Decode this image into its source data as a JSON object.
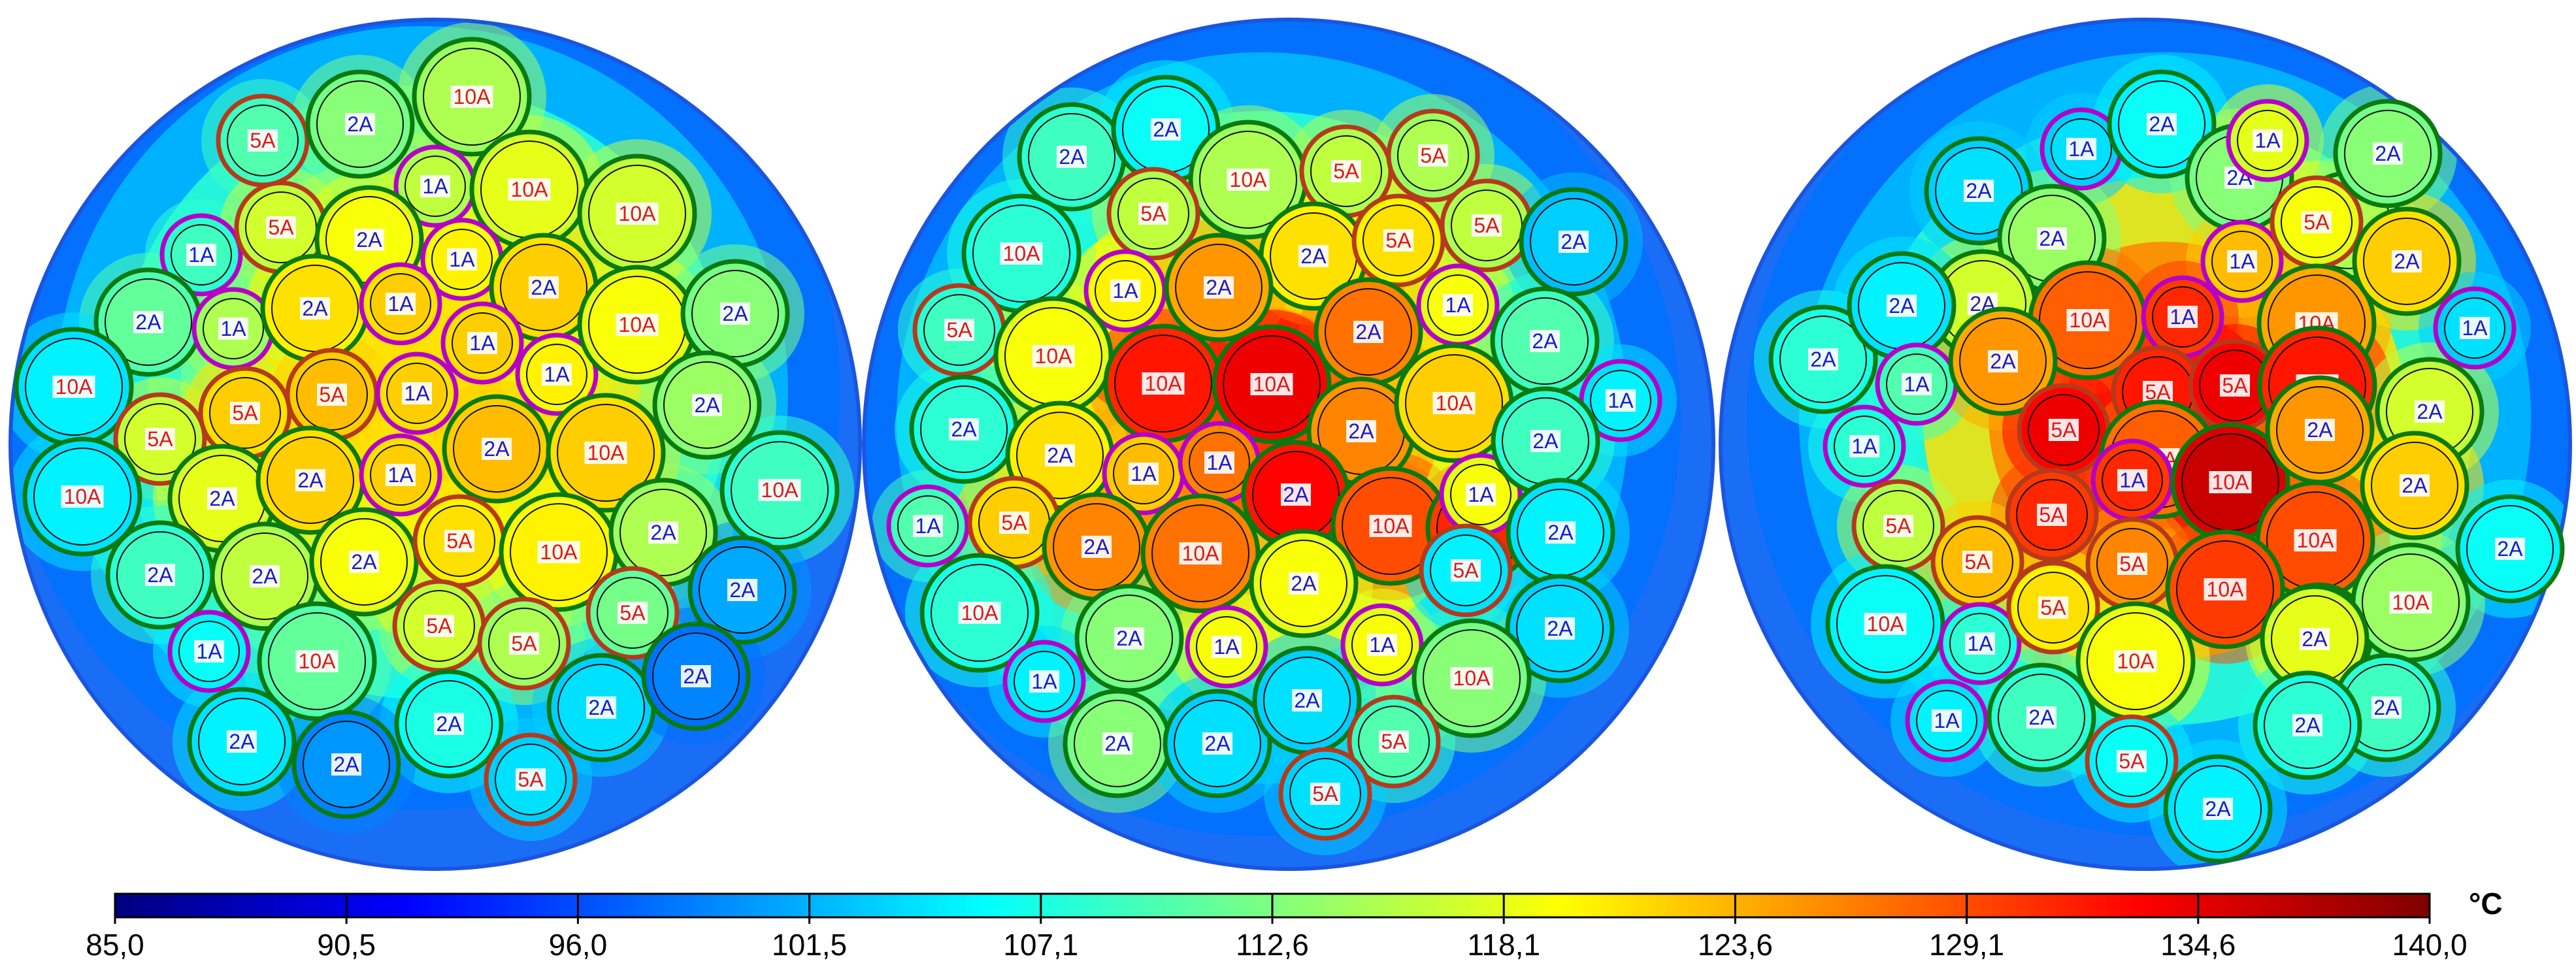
{
  "colorbar": {
    "unit": "°C",
    "min": 85.0,
    "max": 140.0,
    "ticks": [
      "85,0",
      "90,5",
      "96,0",
      "101,5",
      "107,1",
      "112,6",
      "118,1",
      "123,6",
      "129,1",
      "134,6",
      "140,0"
    ],
    "colormap": [
      "#00007f",
      "#0000ff",
      "#007fff",
      "#00ffff",
      "#7fff7f",
      "#ffff00",
      "#ff7f00",
      "#ff0000",
      "#7f0000"
    ]
  },
  "ring_colors": {
    "1A": "#b400c8",
    "2A": "#0a7a10",
    "5A": "#b53a1c",
    "10A": "#0a7a10"
  },
  "label_colors": {
    "1A": "#1a1acc",
    "2A": "#1a1acc",
    "5A": "#e01818",
    "10A": "#e01818"
  },
  "panels": [
    {
      "cables": [
        {
          "label": "5A",
          "t": 109
        },
        {
          "label": "2A",
          "t": 112
        },
        {
          "label": "10A",
          "t": 114
        },
        {
          "label": "1A",
          "t": 115
        },
        {
          "label": "10A",
          "t": 117
        },
        {
          "label": "10A",
          "t": 116
        },
        {
          "label": "1A",
          "t": 108
        },
        {
          "label": "5A",
          "t": 116
        },
        {
          "label": "2A",
          "t": 118
        },
        {
          "label": "1A",
          "t": 119
        },
        {
          "label": "2A",
          "t": 121
        },
        {
          "label": "2A",
          "t": 110
        },
        {
          "label": "1A",
          "t": 114
        },
        {
          "label": "2A",
          "t": 120
        },
        {
          "label": "1A",
          "t": 121
        },
        {
          "label": "1A",
          "t": 121
        },
        {
          "label": "1A",
          "t": 119
        },
        {
          "label": "10A",
          "t": 118
        },
        {
          "label": "2A",
          "t": 112
        },
        {
          "label": "10A",
          "t": 104
        },
        {
          "label": "5A",
          "t": 116
        },
        {
          "label": "5A",
          "t": 121
        },
        {
          "label": "5A",
          "t": 122
        },
        {
          "label": "1A",
          "t": 121
        },
        {
          "label": "2A",
          "t": 122
        },
        {
          "label": "10A",
          "t": 121
        },
        {
          "label": "2A",
          "t": 113
        },
        {
          "label": "10A",
          "t": 104
        },
        {
          "label": "2A",
          "t": 117
        },
        {
          "label": "2A",
          "t": 121
        },
        {
          "label": "1A",
          "t": 121
        },
        {
          "label": "10A",
          "t": 108
        },
        {
          "label": "2A",
          "t": 108
        },
        {
          "label": "2A",
          "t": 115
        },
        {
          "label": "2A",
          "t": 118
        },
        {
          "label": "5A",
          "t": 120
        },
        {
          "label": "10A",
          "t": 119
        },
        {
          "label": "2A",
          "t": 114
        },
        {
          "label": "5A",
          "t": 116
        },
        {
          "label": "5A",
          "t": 114
        },
        {
          "label": "5A",
          "t": 111
        },
        {
          "label": "2A",
          "t": 100
        },
        {
          "label": "1A",
          "t": 105
        },
        {
          "label": "10A",
          "t": 110
        },
        {
          "label": "2A",
          "t": 106
        },
        {
          "label": "2A",
          "t": 103
        },
        {
          "label": "2A",
          "t": 98
        },
        {
          "label": "2A",
          "t": 104
        },
        {
          "label": "2A",
          "t": 99
        },
        {
          "label": "5A",
          "t": 103
        }
      ]
    },
    {
      "cables": [
        {
          "label": "2A",
          "t": 108
        },
        {
          "label": "2A",
          "t": 105
        },
        {
          "label": "10A",
          "t": 114
        },
        {
          "label": "5A",
          "t": 115
        },
        {
          "label": "5A",
          "t": 114
        },
        {
          "label": "5A",
          "t": 115
        },
        {
          "label": "2A",
          "t": 120
        },
        {
          "label": "5A",
          "t": 120
        },
        {
          "label": "5A",
          "t": 115
        },
        {
          "label": "2A",
          "t": 102
        },
        {
          "label": "10A",
          "t": 107
        },
        {
          "label": "1A",
          "t": 119
        },
        {
          "label": "2A",
          "t": 124
        },
        {
          "label": "2A",
          "t": 126
        },
        {
          "label": "1A",
          "t": 118
        },
        {
          "label": "5A",
          "t": 108
        },
        {
          "label": "10A",
          "t": 118
        },
        {
          "label": "10A",
          "t": 131
        },
        {
          "label": "10A",
          "t": 133
        },
        {
          "label": "2A",
          "t": 125
        },
        {
          "label": "10A",
          "t": 121
        },
        {
          "label": "2A",
          "t": 109
        },
        {
          "label": "1A",
          "t": 104
        },
        {
          "label": "2A",
          "t": 107
        },
        {
          "label": "2A",
          "t": 120
        },
        {
          "label": "1A",
          "t": 122
        },
        {
          "label": "1A",
          "t": 126
        },
        {
          "label": "2A",
          "t": 132
        },
        {
          "label": "10A",
          "t": 128
        },
        {
          "label": "2A",
          "t": 130
        },
        {
          "label": "1A",
          "t": 118
        },
        {
          "label": "2A",
          "t": 108
        },
        {
          "label": "2A",
          "t": 104
        },
        {
          "label": "1A",
          "t": 109
        },
        {
          "label": "5A",
          "t": 121
        },
        {
          "label": "2A",
          "t": 125
        },
        {
          "label": "10A",
          "t": 126
        },
        {
          "label": "2A",
          "t": 118
        },
        {
          "label": "2A",
          "t": 103
        },
        {
          "label": "10A",
          "t": 107
        },
        {
          "label": "2A",
          "t": 112
        },
        {
          "label": "1A",
          "t": 118
        },
        {
          "label": "1A",
          "t": 118
        },
        {
          "label": "10A",
          "t": 112
        },
        {
          "label": "5A",
          "t": 104
        },
        {
          "label": "1A",
          "t": 104
        },
        {
          "label": "2A",
          "t": 112
        },
        {
          "label": "2A",
          "t": 103
        },
        {
          "label": "2A",
          "t": 103
        },
        {
          "label": "5A",
          "t": 109
        },
        {
          "label": "5A",
          "t": 103
        }
      ]
    },
    {
      "cables": [
        {
          "label": "1A",
          "t": 103
        },
        {
          "label": "2A",
          "t": 105
        },
        {
          "label": "2A",
          "t": 112
        },
        {
          "label": "2A",
          "t": 103
        },
        {
          "label": "2A",
          "t": 113
        },
        {
          "label": "1A",
          "t": 117
        },
        {
          "label": "2A",
          "t": 114
        },
        {
          "label": "1A",
          "t": 122
        },
        {
          "label": "5A",
          "t": 118
        },
        {
          "label": "2A",
          "t": 112
        },
        {
          "label": "2A",
          "t": 107
        },
        {
          "label": "2A",
          "t": 116
        },
        {
          "label": "10A",
          "t": 127
        },
        {
          "label": "1A",
          "t": 130
        },
        {
          "label": "10A",
          "t": 124
        },
        {
          "label": "2A",
          "t": 121
        },
        {
          "label": "1A",
          "t": 103
        },
        {
          "label": "2A",
          "t": 104
        },
        {
          "label": "1A",
          "t": 109
        },
        {
          "label": "2A",
          "t": 124
        },
        {
          "label": "5A",
          "t": 131
        },
        {
          "label": "5A",
          "t": 133
        },
        {
          "label": "10A",
          "t": 131
        },
        {
          "label": "2A",
          "t": 116
        },
        {
          "label": "1A",
          "t": 107
        },
        {
          "label": "5A",
          "t": 133
        },
        {
          "label": "10A",
          "t": 127
        },
        {
          "label": "1A",
          "t": 130
        },
        {
          "label": "10A",
          "t": 135
        },
        {
          "label": "2A",
          "t": 124
        },
        {
          "label": "2A",
          "t": 121
        },
        {
          "label": "5A",
          "t": 115
        },
        {
          "label": "5A",
          "t": 130
        },
        {
          "label": "10A",
          "t": 128
        },
        {
          "label": "2A",
          "t": 105
        },
        {
          "label": "10A",
          "t": 105
        },
        {
          "label": "5A",
          "t": 122
        },
        {
          "label": "5A",
          "t": 128
        },
        {
          "label": "5A",
          "t": 125
        },
        {
          "label": "10A",
          "t": 129
        },
        {
          "label": "2A",
          "t": 117
        },
        {
          "label": "10A",
          "t": 113
        },
        {
          "label": "1A",
          "t": 107
        },
        {
          "label": "5A",
          "t": 120
        },
        {
          "label": "10A",
          "t": 118
        },
        {
          "label": "2A",
          "t": 117
        },
        {
          "label": "2A",
          "t": 108
        },
        {
          "label": "1A",
          "t": 104
        },
        {
          "label": "2A",
          "t": 108
        },
        {
          "label": "5A",
          "t": 105
        },
        {
          "label": "2A",
          "t": 107
        },
        {
          "label": "2A",
          "t": 104
        }
      ]
    }
  ]
}
